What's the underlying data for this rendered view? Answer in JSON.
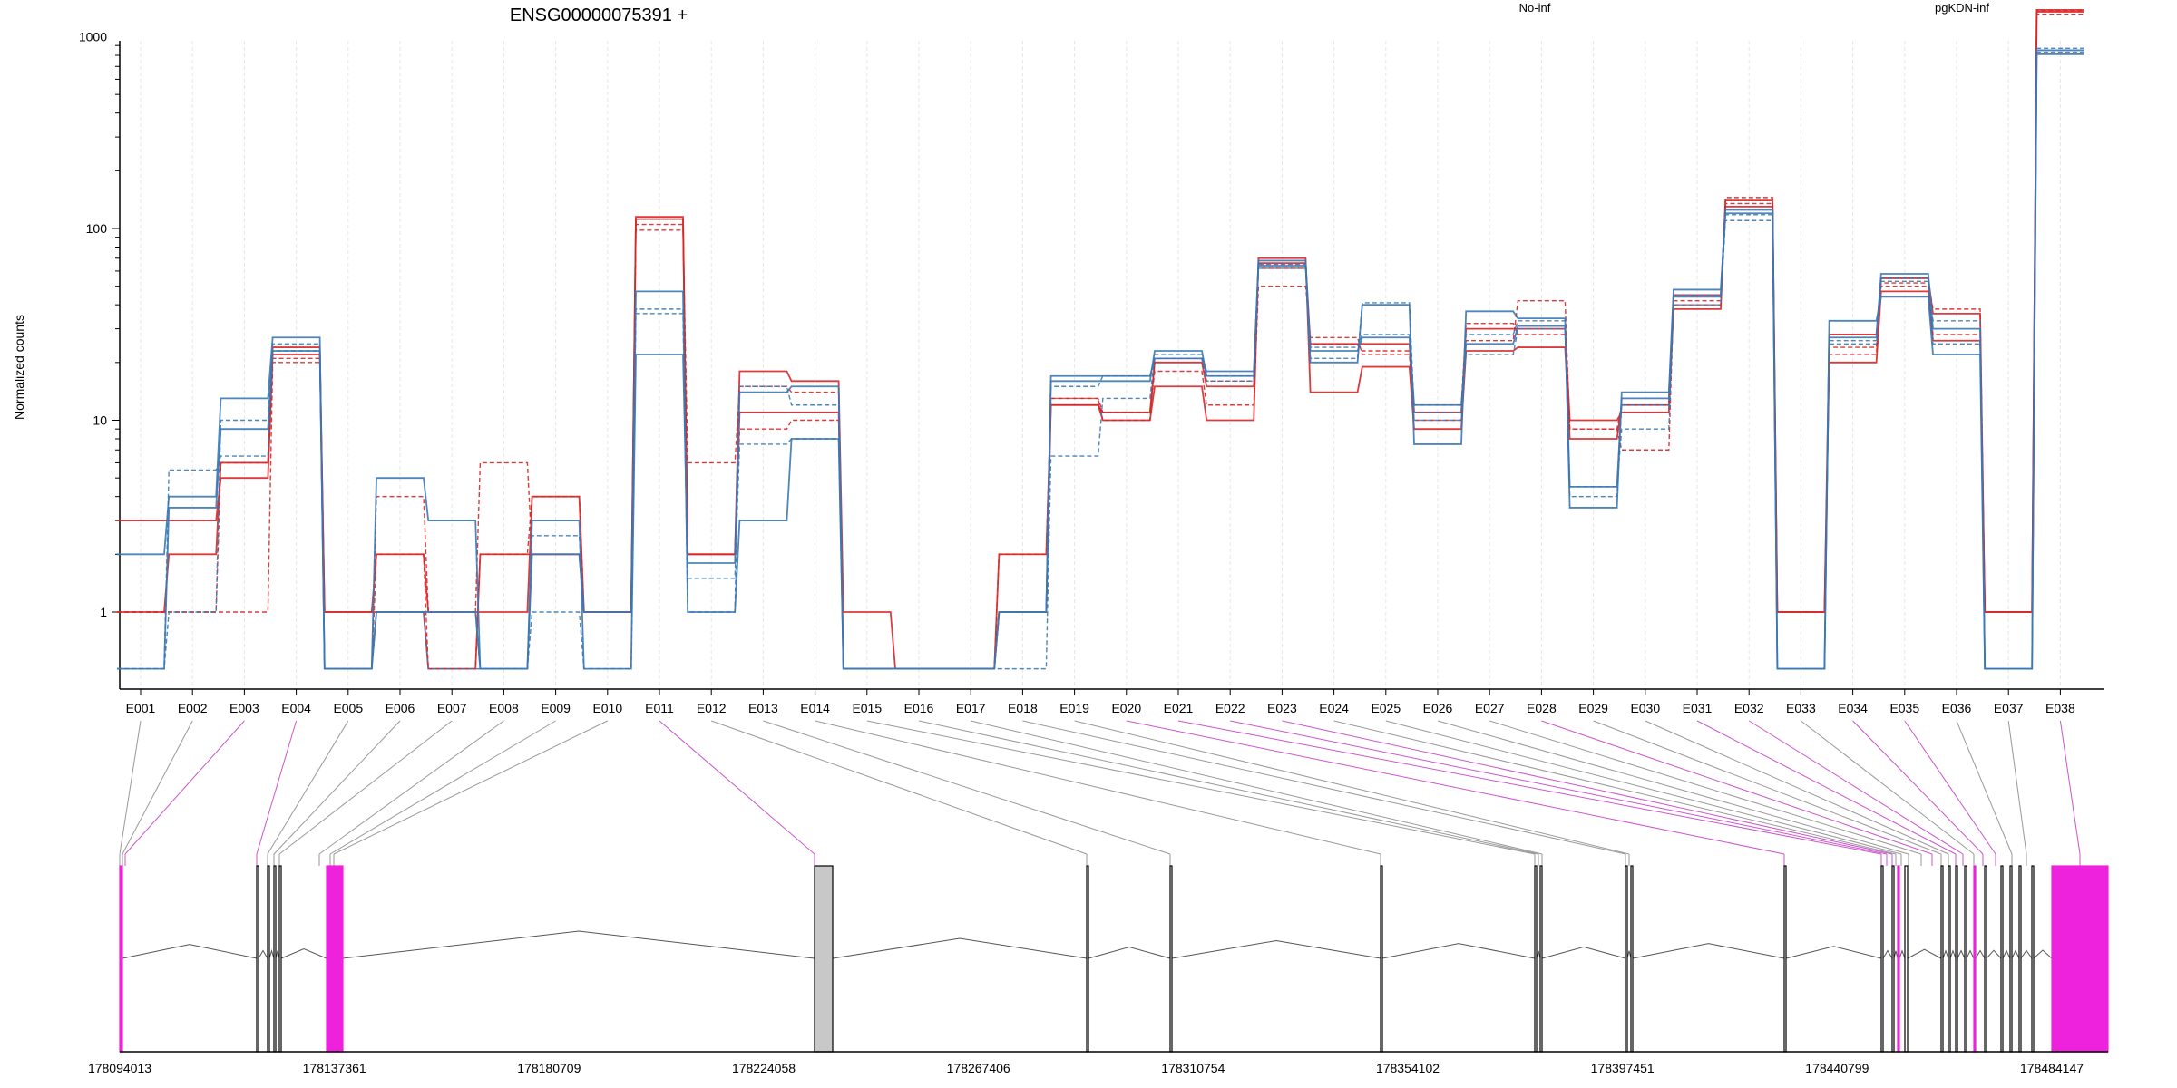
{
  "chart_data": {
    "type": "line",
    "title": "ENSG00000075391 +",
    "ylabel": "Normalized counts",
    "y_scale": "log",
    "y_ticks": [
      "1",
      "10",
      "100",
      "1000"
    ],
    "grid": "vertical dotted lines at each exon",
    "legend": [
      {
        "name": "No-inf",
        "color": "#d62728",
        "placement": "top"
      },
      {
        "name": "pgKDN-inf",
        "color": "#3b78b4",
        "placement": "top-right"
      }
    ],
    "categories": [
      "E001",
      "E002",
      "E003",
      "E004",
      "E005",
      "E006",
      "E007",
      "E008",
      "E009",
      "E010",
      "E011",
      "E012",
      "E013",
      "E014",
      "E015",
      "E016",
      "E017",
      "E018",
      "E019",
      "E020",
      "E021",
      "E022",
      "E023",
      "E024",
      "E025",
      "E026",
      "E027",
      "E028",
      "E029",
      "E030",
      "E031",
      "E032",
      "E033",
      "E034",
      "E035",
      "E036",
      "E037",
      "E038"
    ],
    "series": [
      {
        "group": "No-inf",
        "color": "#d62728",
        "dash": "solid",
        "values": [
          3,
          3,
          5,
          22,
          1,
          2,
          1,
          1,
          4,
          1,
          115,
          2,
          18,
          16,
          1,
          0.5,
          0.5,
          2,
          12,
          10,
          15,
          10,
          70,
          14,
          19,
          9,
          23,
          24,
          8,
          12,
          38,
          140,
          1,
          20,
          47,
          26,
          1,
          1380
        ]
      },
      {
        "group": "No-inf",
        "color": "#d62728",
        "dash": "dashed",
        "values": [
          1,
          1,
          1,
          20,
          0.5,
          4,
          1,
          6,
          2,
          1,
          98,
          6,
          15,
          14,
          0.5,
          0.5,
          0.5,
          1,
          13,
          11,
          18,
          12,
          50,
          27,
          22,
          10,
          26,
          42,
          9,
          7,
          42,
          145,
          1,
          24,
          50,
          28,
          1,
          1310
        ]
      },
      {
        "group": "No-inf",
        "color": "#d62728",
        "dash": "solid",
        "values": [
          1,
          2,
          6,
          24,
          1,
          1,
          0.5,
          2,
          2,
          1,
          112,
          2,
          11,
          11,
          0.5,
          0.5,
          0.5,
          1,
          12,
          11,
          20,
          15,
          66,
          25,
          25,
          11,
          30,
          30,
          10,
          11,
          45,
          130,
          1,
          28,
          55,
          36,
          1,
          1350
        ]
      },
      {
        "group": "No-inf",
        "color": "#d62728",
        "dash": "dashed",
        "values": [
          1,
          1,
          6,
          21,
          0.5,
          2,
          0.5,
          2,
          4,
          1,
          105,
          2,
          9,
          10,
          0.5,
          0.5,
          0.5,
          2,
          13,
          10,
          21,
          16,
          62,
          25,
          23,
          12,
          32,
          28,
          9,
          12,
          40,
          135,
          1,
          22,
          52,
          38,
          1,
          1365
        ]
      },
      {
        "group": "pgKDN-inf",
        "color": "#3b78b4",
        "dash": "solid",
        "values": [
          2,
          4,
          13,
          27,
          0.5,
          5,
          3,
          0.5,
          2,
          1,
          47,
          1,
          3,
          8,
          0.5,
          0.5,
          0.5,
          1,
          17,
          17,
          21,
          18,
          64,
          20,
          40,
          7.5,
          37,
          34,
          3.5,
          14,
          48,
          120,
          0.5,
          33,
          44,
          22,
          0.5,
          810
        ]
      },
      {
        "group": "pgKDN-inf",
        "color": "#3b78b4",
        "dash": "dashed",
        "values": [
          0.5,
          5.5,
          6.5,
          23,
          0.5,
          1,
          0.5,
          0.5,
          1,
          0.5,
          38,
          1.5,
          7.5,
          8,
          0.5,
          0.5,
          0.5,
          0.5,
          6.5,
          13,
          22,
          17,
          62,
          24,
          28,
          10,
          22,
          30,
          4.5,
          9,
          40,
          110,
          0.5,
          25,
          53,
          25,
          0.5,
          830
        ]
      },
      {
        "group": "pgKDN-inf",
        "color": "#3b78b4",
        "dash": "solid",
        "values": [
          0.5,
          3.5,
          9,
          23,
          0.5,
          1,
          1,
          0.5,
          3,
          0.5,
          22,
          1.8,
          14,
          15,
          0.5,
          0.5,
          0.5,
          1,
          16,
          16,
          23,
          17,
          68,
          23,
          27,
          12,
          25,
          31,
          4.5,
          13,
          44,
          125,
          0.5,
          27,
          58,
          30,
          0.5,
          850
        ]
      },
      {
        "group": "pgKDN-inf",
        "color": "#3b78b4",
        "dash": "dashed",
        "values": [
          0.5,
          1,
          10,
          25,
          0.5,
          1,
          1,
          0.5,
          2.5,
          1,
          36,
          1,
          15,
          12,
          0.5,
          0.5,
          0.5,
          1,
          15,
          17,
          21,
          16,
          65,
          21,
          41,
          11,
          28,
          33,
          4,
          12,
          45,
          118,
          0.5,
          26,
          55,
          33,
          0.5,
          870
        ]
      }
    ]
  },
  "gene_model": {
    "coordinate_labels": [
      "178094013",
      "178137361",
      "178180709",
      "178224058",
      "178267406",
      "178310754",
      "178354102",
      "178397451",
      "178440799",
      "178484147"
    ],
    "exon_highlight_color": "#ee22dd",
    "intron_color": "#555555",
    "neutral_exon_color": "#c8c8c8",
    "link_colors": {
      "normal": "#999999",
      "highlight": "#cc55cc"
    }
  }
}
